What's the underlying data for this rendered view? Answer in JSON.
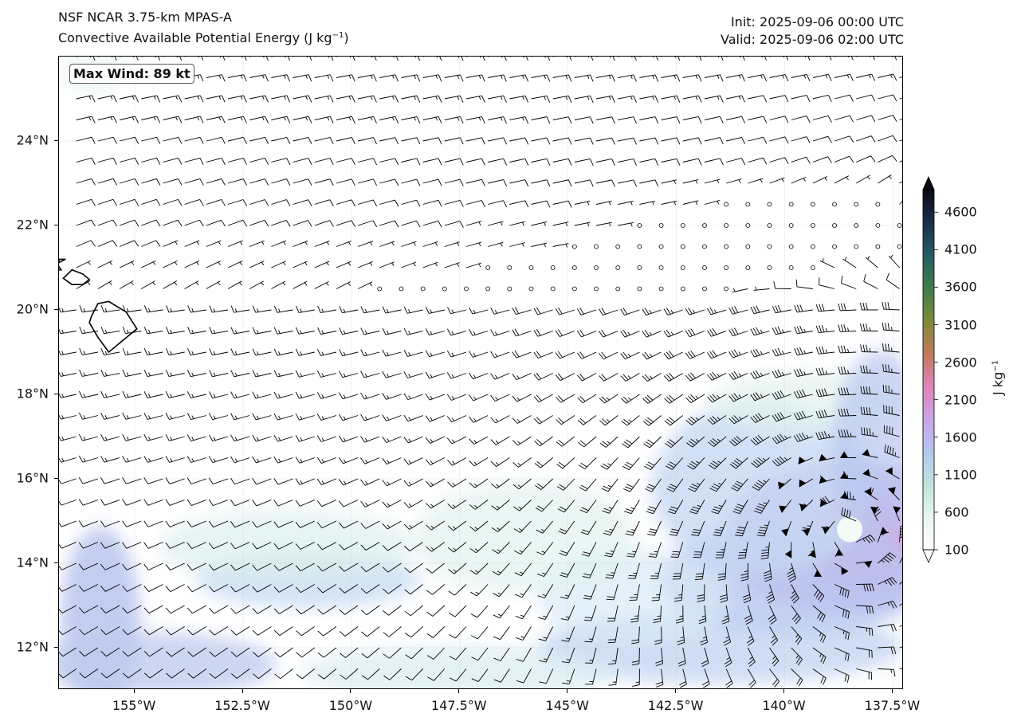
{
  "header": {
    "model": "NSF NCAR 3.75-km MPAS-A",
    "field": "Convective Available Potential Energy (J kg",
    "field_exp": "−1",
    "field_close": ")",
    "init": "Init: 2025-09-06 00:00 UTC",
    "valid": "Valid: 2025-09-06 02:00 UTC"
  },
  "map": {
    "max_wind": "Max Wind: 89 kt",
    "extent": {
      "lon": [
        -156.75,
        -137.25
      ],
      "lat": [
        11.0,
        26.0
      ]
    },
    "lat_ticks": [
      {
        "value": 12,
        "label": "12°N"
      },
      {
        "value": 14,
        "label": "14°N"
      },
      {
        "value": 16,
        "label": "16°N"
      },
      {
        "value": 18,
        "label": "18°N"
      },
      {
        "value": 20,
        "label": "20°N"
      },
      {
        "value": 22,
        "label": "22°N"
      },
      {
        "value": 24,
        "label": "24°N"
      }
    ],
    "lon_ticks": [
      {
        "value": -155,
        "label": "155°W"
      },
      {
        "value": -152.5,
        "label": "152.5°W"
      },
      {
        "value": -150,
        "label": "150°W"
      },
      {
        "value": -147.5,
        "label": "147.5°W"
      },
      {
        "value": -145,
        "label": "145°W"
      },
      {
        "value": -142.5,
        "label": "142.5°W"
      },
      {
        "value": -140,
        "label": "140°W"
      },
      {
        "value": -137.5,
        "label": "137.5°W"
      }
    ],
    "cyclone_center": {
      "lon": -138.5,
      "lat": 14.8
    },
    "coastline_color": "#000000",
    "barb_color": "#000000"
  },
  "colorbar": {
    "label": "J kg",
    "label_exp": "−1",
    "min": 100,
    "max": 4900,
    "extend": "both",
    "ticks": [
      {
        "value": 100,
        "label": "100"
      },
      {
        "value": 600,
        "label": "600"
      },
      {
        "value": 1100,
        "label": "1100"
      },
      {
        "value": 1600,
        "label": "1600"
      },
      {
        "value": 2100,
        "label": "2100"
      },
      {
        "value": 2600,
        "label": "2600"
      },
      {
        "value": 3100,
        "label": "3100"
      },
      {
        "value": 3600,
        "label": "3600"
      },
      {
        "value": 4100,
        "label": "4100"
      },
      {
        "value": 4600,
        "label": "4600"
      }
    ],
    "colors": [
      "#ffffff",
      "#e7f6ee",
      "#bfe3dc",
      "#b3c7ef",
      "#c9a5e6",
      "#e083b8",
      "#c07a5a",
      "#7b8a3a",
      "#3f7d4b",
      "#245c62",
      "#1b2e4d",
      "#0a0a12"
    ]
  }
}
